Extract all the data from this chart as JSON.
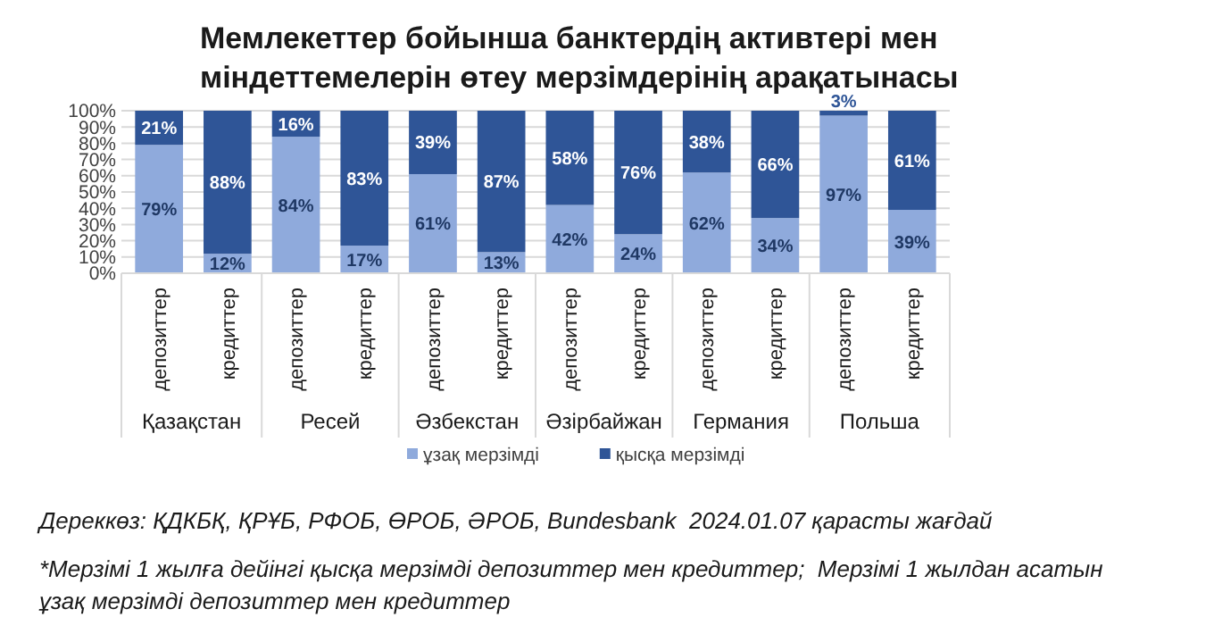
{
  "chart_data": {
    "type": "bar",
    "stacked": true,
    "title": "Мемлекеттер бойынша банктердің активтері мен міндеттемелерін өтеу мерзімдерінің арақатынасы",
    "categories": [
      "депозиттер",
      "кредиттер",
      "депозиттер",
      "кредиттер",
      "депозиттер",
      "кредиттер",
      "депозиттер",
      "кредиттер",
      "депозиттер",
      "кредиттер",
      "депозиттер",
      "кредиттер"
    ],
    "series": [
      {
        "name": "ұзақ мерзімді",
        "color": "#8faadc",
        "values": [
          79,
          12,
          84,
          17,
          61,
          13,
          42,
          24,
          62,
          34,
          97,
          39
        ],
        "value_labels": [
          "79%",
          "12%",
          "84%",
          "17%",
          "61%",
          "13%",
          "42%",
          "24%",
          "62%",
          "34%",
          "97%",
          "39%"
        ]
      },
      {
        "name": "қысқа мерзімді",
        "color": "#2f5597",
        "values": [
          21,
          88,
          16,
          83,
          39,
          87,
          58,
          76,
          38,
          66,
          3,
          61
        ],
        "value_labels": [
          "21%",
          "88%",
          "16%",
          "83%",
          "39%",
          "87%",
          "58%",
          "76%",
          "38%",
          "66%",
          "3%",
          "61%"
        ]
      }
    ],
    "ylim": [
      0,
      100
    ],
    "yticks": [
      {
        "value": 0,
        "label": "0%"
      },
      {
        "value": 10,
        "label": "10%"
      },
      {
        "value": 20,
        "label": "20%"
      },
      {
        "value": 30,
        "label": "30%"
      },
      {
        "value": 40,
        "label": "40%"
      },
      {
        "value": 50,
        "label": "50%"
      },
      {
        "value": 60,
        "label": "60%"
      },
      {
        "value": 70,
        "label": "70%"
      },
      {
        "value": 80,
        "label": "80%"
      },
      {
        "value": 90,
        "label": "90%"
      },
      {
        "value": 100,
        "label": "100%"
      }
    ],
    "grid": "y",
    "legend": "bottom",
    "annotations": [
      "Қазақстан",
      "Ресей",
      "Әзбекстан",
      "Әзірбайжан",
      "Германия",
      "Польша",
      "Дереккөз: ҚДКБҚ, ҚРҰБ, РФОБ, ӨРОБ, ӘРОБ, Bundesbank  2024.01.07 қарасты жағдай",
      "*Мерзімі 1 жылға дейінгі қысқа мерзімді депозиттер мен кредиттер;  Мерзімі 1 жылдан асатын ұзақ мерзімді депозиттер мен кредиттер"
    ]
  }
}
